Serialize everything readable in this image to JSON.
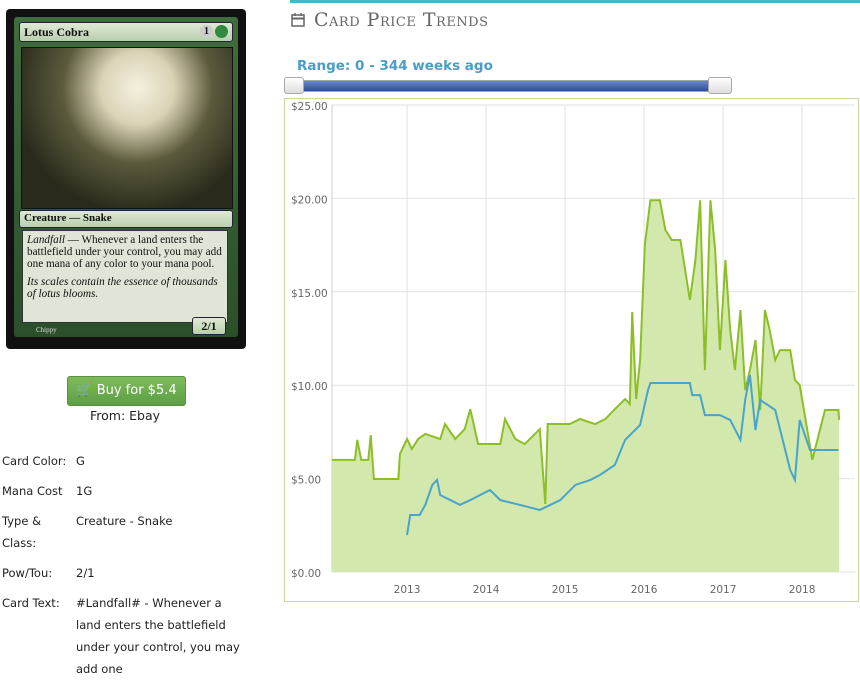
{
  "card_image": {
    "name": "Lotus Cobra",
    "mana_generic": "1",
    "type_line": "Creature — Snake",
    "ability_word": "Landfall",
    "rules_text": " — Whenever a land enters the battlefield under your control, you may add one mana of any color to your mana pool.",
    "flavor_text": "Its scales contain the essence of thousands of lotus blooms.",
    "power_toughness": "2/1",
    "artist": "Chippy"
  },
  "buy": {
    "button": "Buy for $5.4",
    "source": "From: Ebay"
  },
  "details": [
    [
      "Card Color:",
      "G"
    ],
    [
      "Mana Cost",
      "1G"
    ],
    [
      "Type & Class:",
      "Creature - Snake"
    ],
    [
      "Pow/Tou:",
      "2/1"
    ],
    [
      "Card Text:",
      "#Landfall# - Whenever a land enters the battlefield under your control, you may add one"
    ]
  ],
  "section_title": "Card Price Trends",
  "range_label": "Range: 0 - 344 weeks ago",
  "chart_data": {
    "type": "line",
    "xlim": [
      2012.05,
      2018.67
    ],
    "xticks": [
      2013,
      2014,
      2015,
      2016,
      2017,
      2018
    ],
    "ylim": [
      0,
      25
    ],
    "yticks": [
      {
        "value": 0,
        "label": "$0.00"
      },
      {
        "value": 5,
        "label": "$5.00"
      },
      {
        "value": 10,
        "label": "$10.00"
      },
      {
        "value": 15,
        "label": "$15.00"
      },
      {
        "value": 20,
        "label": "$20.00"
      },
      {
        "value": 25,
        "label": "$25.00"
      }
    ],
    "grid": true,
    "series": [
      {
        "color": "#8cbf26",
        "fill": "#d3e8ad",
        "x": [
          2012.05,
          2012.34,
          2012.37,
          2012.42,
          2012.51,
          2012.54,
          2012.58,
          2012.89,
          2012.91,
          2013.0,
          2013.06,
          2013.14,
          2013.23,
          2013.42,
          2013.48,
          2013.61,
          2013.73,
          2013.8,
          2013.9,
          2014.18,
          2014.24,
          2014.37,
          2014.49,
          2014.68,
          2014.75,
          2014.78,
          2015.06,
          2015.19,
          2015.38,
          2015.51,
          2015.63,
          2015.76,
          2015.82,
          2015.85,
          2015.9,
          2015.95,
          2016.01,
          2016.08,
          2016.2,
          2016.27,
          2016.35,
          2016.46,
          2016.58,
          2016.65,
          2016.71,
          2016.77,
          2016.84,
          2016.9,
          2016.96,
          2017.03,
          2017.09,
          2017.15,
          2017.22,
          2017.28,
          2017.34,
          2017.41,
          2017.47,
          2017.53,
          2017.59,
          2017.66,
          2017.72,
          2017.85,
          2017.91,
          2017.97,
          2018.13,
          2018.29,
          2018.46,
          2018.47
        ],
        "values": [
          6.0,
          6.0,
          7.07,
          6.0,
          6.0,
          7.33,
          4.98,
          4.98,
          6.32,
          7.12,
          6.58,
          7.12,
          7.39,
          7.12,
          7.92,
          7.12,
          7.65,
          8.72,
          6.85,
          6.85,
          8.19,
          7.12,
          6.85,
          7.65,
          3.64,
          7.92,
          7.92,
          8.19,
          7.92,
          8.19,
          8.72,
          9.26,
          8.99,
          13.92,
          9.26,
          11.35,
          17.51,
          19.9,
          19.9,
          18.31,
          17.77,
          17.77,
          14.56,
          16.7,
          19.9,
          10.81,
          19.9,
          17.24,
          11.88,
          16.7,
          12.96,
          10.81,
          14.02,
          9.74,
          10.81,
          12.42,
          8.67,
          14.02,
          12.96,
          11.35,
          11.88,
          11.88,
          10.28,
          10.01,
          6.0,
          8.67,
          8.67,
          8.14
        ]
      },
      {
        "color": "#4aa3c8",
        "x": [
          2013.0,
          2013.04,
          2013.16,
          2013.23,
          2013.32,
          2013.38,
          2013.42,
          2013.67,
          2013.8,
          2014.05,
          2014.18,
          2014.43,
          2014.68,
          2014.94,
          2015.13,
          2015.32,
          2015.44,
          2015.63,
          2015.76,
          2015.95,
          2016.05,
          2016.08,
          2016.58,
          2016.61,
          2016.71,
          2016.77,
          2016.96,
          2017.09,
          2017.22,
          2017.28,
          2017.34,
          2017.41,
          2017.47,
          2017.66,
          2017.85,
          2017.91,
          2017.97,
          2018.1,
          2018.46
        ],
        "values": [
          1.98,
          3.05,
          3.05,
          3.59,
          4.66,
          4.93,
          4.12,
          3.59,
          3.85,
          4.39,
          3.85,
          3.59,
          3.32,
          3.85,
          4.66,
          4.93,
          5.19,
          5.73,
          7.07,
          7.87,
          9.74,
          10.12,
          10.12,
          9.47,
          9.47,
          8.4,
          8.4,
          8.14,
          7.07,
          9.21,
          10.55,
          7.6,
          9.21,
          8.67,
          5.46,
          4.93,
          8.14,
          6.53,
          6.53
        ]
      }
    ]
  }
}
